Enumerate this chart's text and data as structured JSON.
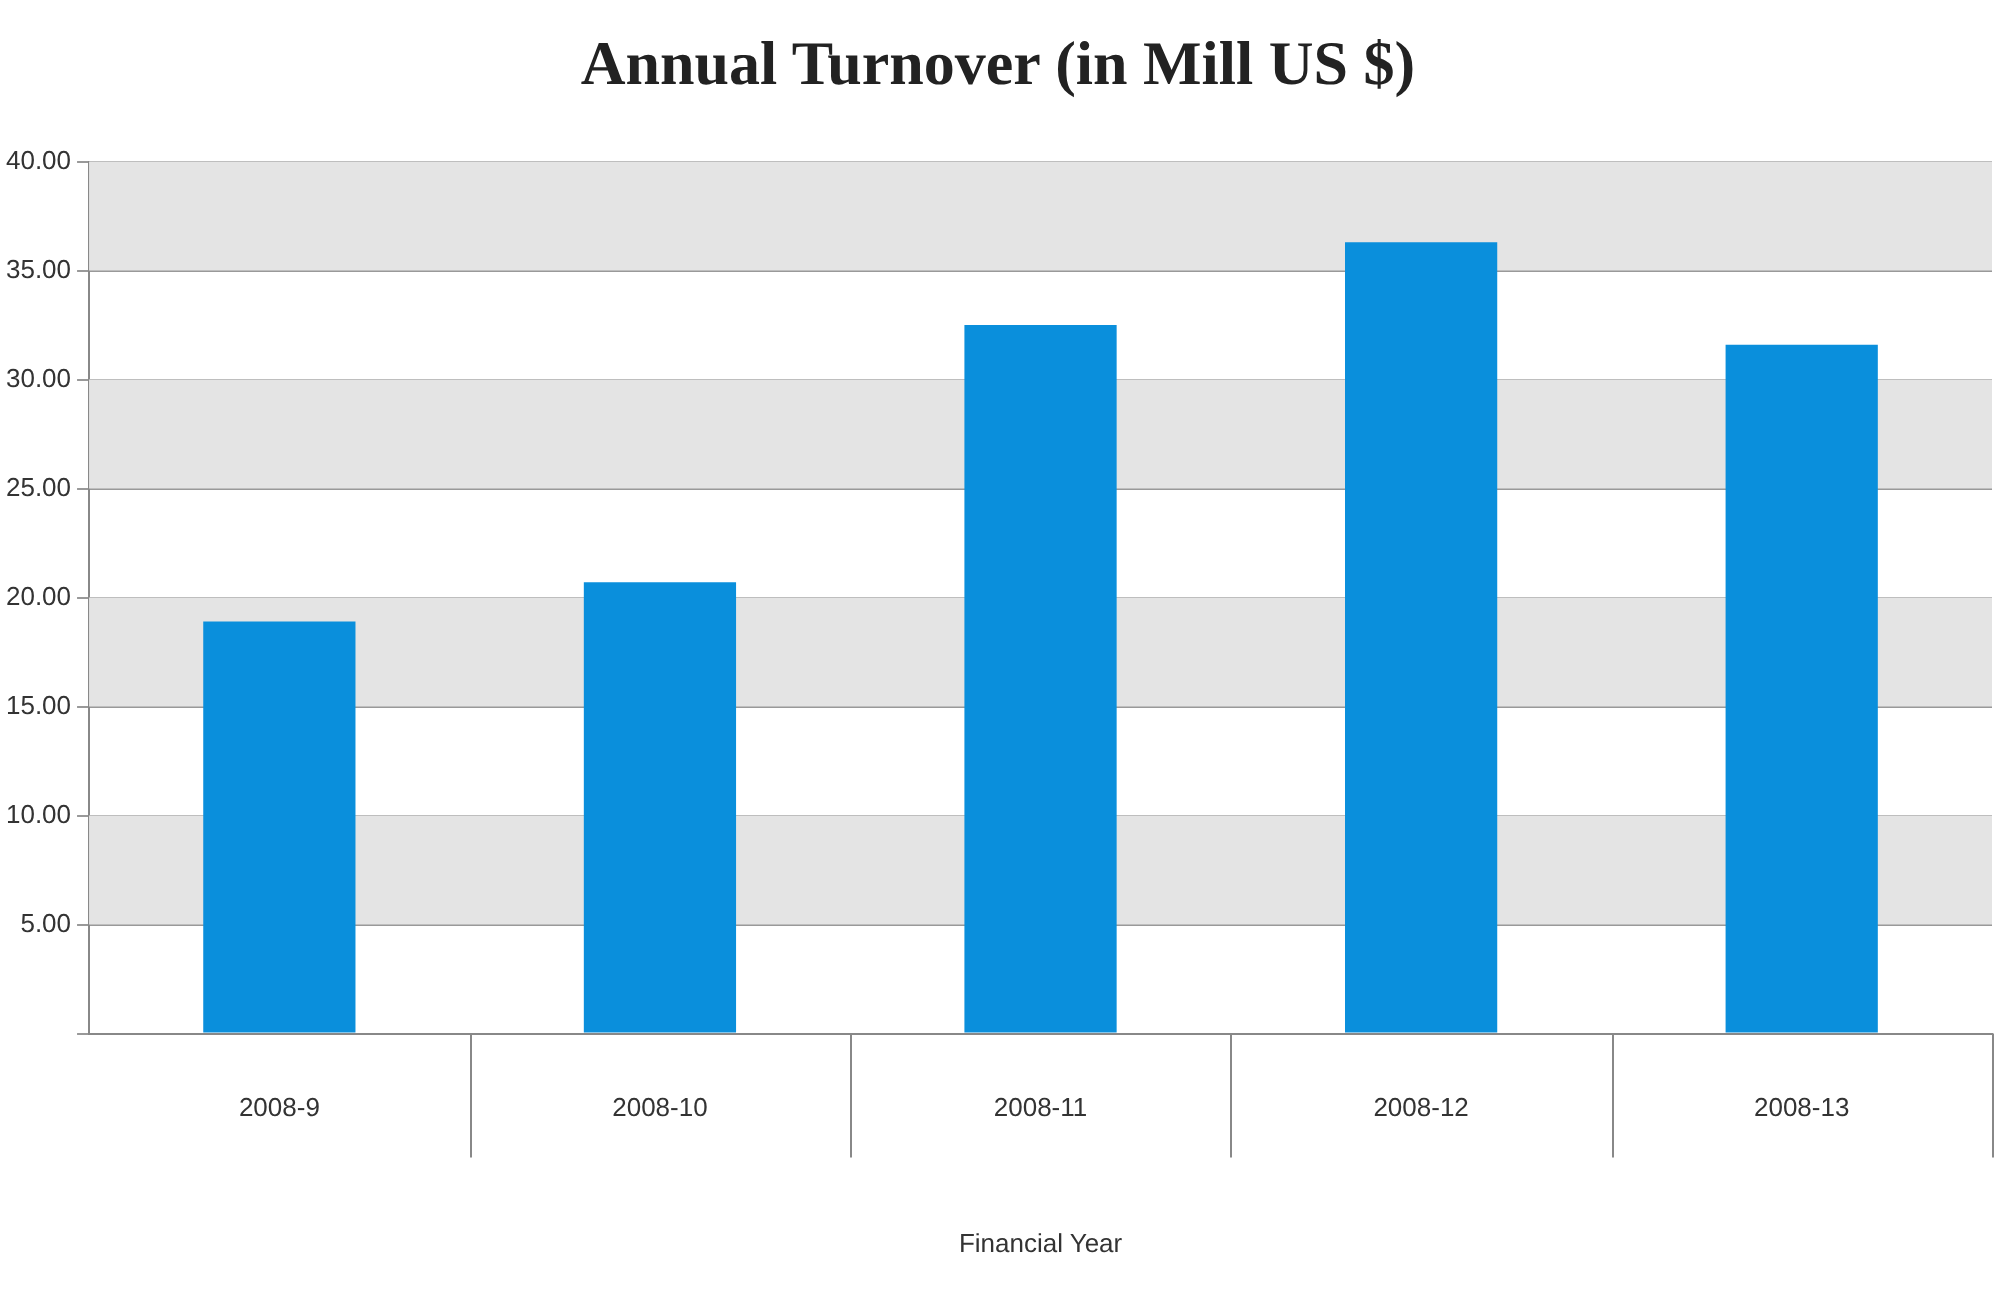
{
  "chart_data": {
    "type": "bar",
    "title": "Annual Turnover (in Mill US $)",
    "xlabel": "Financial Year",
    "categories": [
      "2008-9",
      "2008-10",
      "2008-11",
      "2008-12",
      "2008-13"
    ],
    "values": [
      18.9,
      20.7,
      32.5,
      36.3,
      31.6
    ],
    "color": "#0a8fdc",
    "ylim": [
      0,
      40
    ],
    "yticks": [
      {
        "value": 0,
        "label": null
      },
      {
        "value": 5,
        "label": "5.00"
      },
      {
        "value": 10,
        "label": "10.00"
      },
      {
        "value": 15,
        "label": "15.00"
      },
      {
        "value": 20,
        "label": "20.00"
      },
      {
        "value": 25,
        "label": "25.00"
      },
      {
        "value": 30,
        "label": "30.00"
      },
      {
        "value": 35,
        "label": "35.00"
      },
      {
        "value": 40,
        "label": "40.00"
      }
    ],
    "bands": [
      {
        "axis": "y",
        "from": 5,
        "to": 10,
        "color": "#e4e4e4"
      },
      {
        "axis": "y",
        "from": 15,
        "to": 20,
        "color": "#e4e4e4"
      },
      {
        "axis": "y",
        "from": 25,
        "to": 30,
        "color": "#e4e4e4"
      },
      {
        "axis": "y",
        "from": 35,
        "to": 40,
        "color": "#e4e4e4"
      }
    ],
    "grid": "y",
    "legend": false
  }
}
